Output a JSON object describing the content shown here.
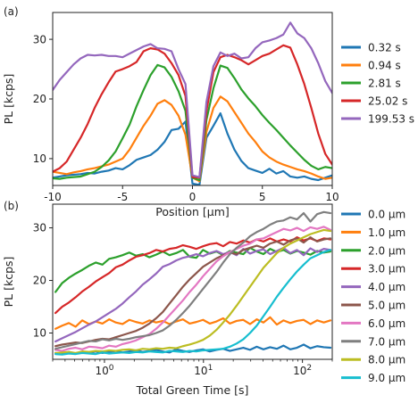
{
  "chart_data": [
    {
      "type": "line",
      "panel_label": "(a)",
      "xlabel": "Position [μm]",
      "ylabel": "PL [kcps]",
      "xlim": [
        -10,
        10
      ],
      "ylim": [
        5.5,
        34.5
      ],
      "xticks": [
        -10,
        -5,
        0,
        5,
        10
      ],
      "xtick_labels": [
        "-10",
        "-5",
        "0",
        "5",
        "10"
      ],
      "yticks": [
        10,
        20,
        30
      ],
      "ytick_labels": [
        "10",
        "20",
        "30"
      ],
      "grid": false,
      "legend_position": "outside-right",
      "x": [
        -10,
        -9.5,
        -9,
        -8.5,
        -8,
        -7.5,
        -7,
        -6.5,
        -6,
        -5.5,
        -5,
        -4.5,
        -4,
        -3.5,
        -3,
        -2.5,
        -2,
        -1.5,
        -1,
        -0.5,
        0,
        0.5,
        1,
        1.5,
        2,
        2.5,
        3,
        3.5,
        4,
        4.5,
        5,
        5.5,
        6,
        6.5,
        7,
        7.5,
        8,
        8.5,
        9,
        9.5,
        10
      ],
      "series": [
        {
          "name": "0.32 s",
          "color": "#1f77b4",
          "values": [
            6.8,
            7.0,
            7.2,
            7.3,
            7.4,
            7.6,
            7.5,
            7.8,
            8.0,
            8.4,
            8.2,
            8.9,
            9.8,
            10.2,
            10.6,
            11.5,
            12.8,
            14.8,
            15.0,
            16.2,
            5.8,
            5.6,
            13.5,
            15.5,
            17.6,
            14.2,
            11.5,
            9.6,
            8.4,
            8.0,
            7.6,
            8.3,
            7.5,
            7.9,
            7.0,
            6.8,
            7.0,
            6.6,
            6.4,
            6.8,
            7.2
          ]
        },
        {
          "name": "0.94 s",
          "color": "#ff7f0e",
          "values": [
            7.8,
            7.6,
            7.4,
            7.7,
            7.9,
            8.2,
            8.4,
            8.7,
            9.0,
            9.5,
            10.0,
            11.5,
            13.5,
            15.5,
            17.2,
            19.2,
            19.8,
            19.0,
            17.2,
            14.0,
            6.8,
            6.2,
            14.5,
            18.5,
            20.4,
            19.6,
            17.8,
            16.0,
            14.2,
            12.8,
            11.2,
            10.2,
            9.5,
            9.0,
            8.6,
            8.2,
            7.9,
            7.5,
            7.0,
            6.6,
            6.8
          ]
        },
        {
          "name": "2.81 s",
          "color": "#2ca02c",
          "values": [
            6.7,
            6.6,
            6.8,
            6.9,
            7.0,
            7.4,
            7.8,
            8.6,
            9.7,
            11.2,
            13.4,
            15.7,
            18.8,
            21.5,
            24.0,
            25.7,
            25.3,
            23.7,
            21.3,
            18.0,
            6.8,
            6.4,
            16.5,
            21.8,
            25.6,
            25.2,
            23.5,
            21.6,
            20.1,
            18.8,
            17.3,
            16.0,
            14.8,
            13.5,
            12.2,
            11.0,
            9.8,
            8.8,
            8.2,
            8.6,
            8.4
          ]
        },
        {
          "name": "25.02 s",
          "color": "#d62728",
          "values": [
            7.8,
            8.4,
            9.5,
            11.5,
            13.5,
            15.8,
            18.5,
            20.8,
            22.8,
            24.6,
            25.0,
            25.5,
            26.2,
            28.0,
            28.5,
            28.3,
            27.6,
            26.0,
            24.0,
            20.5,
            6.9,
            6.8,
            18.0,
            24.5,
            27.0,
            27.4,
            27.0,
            26.5,
            25.8,
            26.5,
            27.2,
            27.6,
            28.3,
            29.0,
            28.6,
            25.8,
            22.5,
            18.5,
            14.2,
            10.8,
            9.0
          ]
        },
        {
          "name": "199.53 s",
          "color": "#9467bd",
          "values": [
            21.5,
            23.2,
            24.5,
            25.8,
            26.8,
            27.4,
            27.3,
            27.4,
            27.2,
            27.2,
            27.0,
            27.6,
            28.2,
            28.8,
            29.2,
            28.5,
            28.4,
            28.0,
            25.0,
            22.5,
            7.2,
            6.9,
            19.5,
            25.5,
            27.8,
            27.2,
            27.6,
            26.8,
            27.0,
            28.5,
            29.5,
            29.8,
            30.2,
            30.8,
            32.8,
            31.0,
            30.2,
            28.5,
            26.0,
            23.0,
            21.0
          ]
        }
      ]
    },
    {
      "type": "line",
      "panel_label": "(b)",
      "xlabel": "Total Green Time [s]",
      "ylabel": "PL [kcps]",
      "xscale": "log",
      "xlim": [
        0.3,
        200
      ],
      "ylim": [
        5.0,
        34.5
      ],
      "xticks": [
        1,
        10,
        100
      ],
      "xtick_labels": [
        "10⁰",
        "10¹",
        "10²"
      ],
      "yticks": [
        10,
        20,
        30
      ],
      "ytick_labels": [
        "10",
        "20",
        "30"
      ],
      "grid": false,
      "legend_position": "outside-right",
      "x": [
        0.32,
        0.374,
        0.437,
        0.511,
        0.597,
        0.698,
        0.816,
        0.954,
        1.115,
        1.303,
        1.523,
        1.781,
        2.081,
        2.433,
        2.844,
        3.324,
        3.885,
        4.541,
        5.308,
        6.204,
        7.252,
        8.476,
        9.907,
        11.58,
        13.54,
        15.82,
        18.49,
        21.62,
        25.26,
        29.53,
        34.52,
        40.35,
        47.16,
        55.12,
        64.43,
        75.31,
        88.02,
        102.9,
        120.3,
        140.6,
        164.3,
        192.1
      ],
      "series": [
        {
          "name": "0.0 μm",
          "color": "#1f77b4",
          "values": [
            6.2,
            6.0,
            6.4,
            6.1,
            6.3,
            6.2,
            6.5,
            6.2,
            6.4,
            6.6,
            6.3,
            6.5,
            6.7,
            6.4,
            6.6,
            6.8,
            6.5,
            6.3,
            6.9,
            6.6,
            6.4,
            6.7,
            6.9,
            6.5,
            6.8,
            7.0,
            6.6,
            6.9,
            7.2,
            6.8,
            7.4,
            6.9,
            7.3,
            7.0,
            7.6,
            6.9,
            7.2,
            7.8,
            7.1,
            7.5,
            7.3,
            7.2
          ]
        },
        {
          "name": "1.0 μm",
          "color": "#ff7f0e",
          "values": [
            10.8,
            11.4,
            11.9,
            11.2,
            12.4,
            11.7,
            12.2,
            11.8,
            12.6,
            12.0,
            11.7,
            12.5,
            12.1,
            11.8,
            12.4,
            12.0,
            12.3,
            11.7,
            12.2,
            12.6,
            11.8,
            12.1,
            12.5,
            11.8,
            12.2,
            12.8,
            11.8,
            12.3,
            12.5,
            11.7,
            12.6,
            12.0,
            13.0,
            11.6,
            12.4,
            11.9,
            12.3,
            12.5,
            11.7,
            12.4,
            12.0,
            12.4
          ]
        },
        {
          "name": "2.0 μm",
          "color": "#2ca02c",
          "values": [
            17.8,
            19.5,
            20.5,
            21.3,
            22.0,
            22.8,
            23.4,
            23.0,
            24.1,
            24.4,
            24.8,
            25.3,
            24.7,
            25.0,
            24.4,
            24.9,
            25.5,
            24.8,
            25.2,
            25.8,
            24.5,
            24.3,
            25.8,
            25.1,
            25.5,
            24.8,
            25.6,
            25.3,
            25.0,
            26.2,
            25.5,
            25.0,
            26.0,
            25.4,
            25.8,
            25.1,
            25.6,
            25.3,
            24.9,
            25.6,
            25.3,
            25.5
          ]
        },
        {
          "name": "3.0 μm",
          "color": "#d62728",
          "values": [
            13.8,
            15.0,
            15.8,
            16.8,
            17.9,
            18.8,
            19.8,
            20.6,
            21.4,
            22.5,
            23.0,
            23.8,
            24.5,
            24.8,
            25.2,
            25.8,
            25.5,
            26.0,
            26.2,
            26.7,
            26.4,
            26.0,
            26.5,
            26.9,
            27.1,
            26.5,
            27.3,
            27.0,
            27.6,
            27.2,
            27.8,
            27.4,
            28.0,
            27.4,
            27.8,
            27.4,
            28.2,
            27.6,
            28.0,
            27.5,
            28.0,
            27.8
          ]
        },
        {
          "name": "4.0 μm",
          "color": "#9467bd",
          "values": [
            8.4,
            9.0,
            9.6,
            10.2,
            10.9,
            11.6,
            12.2,
            13.0,
            13.8,
            14.6,
            15.6,
            16.8,
            17.9,
            19.2,
            20.2,
            21.3,
            22.6,
            23.1,
            23.8,
            24.3,
            24.6,
            25.0,
            24.6,
            25.2,
            25.6,
            25.0,
            25.4,
            24.8,
            26.0,
            25.1,
            25.6,
            25.9,
            25.0,
            25.6,
            26.2,
            25.2,
            25.8,
            24.8,
            26.1,
            25.4,
            26.0,
            25.8
          ]
        },
        {
          "name": "5.0 μm",
          "color": "#8c564b",
          "values": [
            7.5,
            7.8,
            8.0,
            8.2,
            8.1,
            8.4,
            8.7,
            8.9,
            8.8,
            9.2,
            9.6,
            10.0,
            10.4,
            11.0,
            11.8,
            12.8,
            14.0,
            15.6,
            17.2,
            18.8,
            20.2,
            21.4,
            22.6,
            23.4,
            24.2,
            24.8,
            25.3,
            25.0,
            25.8,
            26.2,
            26.6,
            26.2,
            27.0,
            27.4,
            26.8,
            27.6,
            28.0,
            27.2,
            28.2,
            27.4,
            27.8,
            28.0
          ]
        },
        {
          "name": "6.0 μm",
          "color": "#e377c2",
          "values": [
            6.8,
            6.6,
            7.0,
            7.2,
            6.9,
            7.4,
            7.3,
            7.1,
            7.6,
            7.4,
            7.9,
            8.2,
            8.6,
            9.2,
            9.8,
            10.8,
            12.0,
            13.4,
            14.8,
            16.2,
            17.8,
            19.2,
            20.8,
            22.2,
            23.6,
            24.6,
            25.4,
            26.0,
            26.6,
            27.0,
            27.8,
            28.0,
            28.6,
            29.2,
            29.8,
            29.5,
            30.0,
            29.4,
            30.1,
            29.8,
            30.2,
            29.6
          ]
        },
        {
          "name": "7.0 μm",
          "color": "#7f7f7f",
          "values": [
            7.0,
            7.3,
            7.6,
            7.9,
            8.2,
            8.5,
            8.4,
            8.8,
            8.6,
            8.9,
            8.7,
            8.9,
            9.2,
            9.4,
            9.6,
            10.0,
            10.5,
            11.4,
            12.5,
            13.8,
            15.2,
            16.8,
            18.4,
            20.0,
            21.6,
            23.4,
            25.0,
            26.2,
            27.2,
            28.4,
            29.2,
            29.8,
            30.6,
            31.2,
            31.4,
            32.0,
            31.6,
            32.8,
            31.2,
            32.6,
            33.0,
            32.8
          ]
        },
        {
          "name": "8.0 μm",
          "color": "#bcbd22",
          "values": [
            6.2,
            6.3,
            6.4,
            6.2,
            6.5,
            6.4,
            6.6,
            6.5,
            6.7,
            6.6,
            6.8,
            6.9,
            6.7,
            7.0,
            6.9,
            7.1,
            7.0,
            7.2,
            7.1,
            7.5,
            7.8,
            8.2,
            8.7,
            9.5,
            10.6,
            12.0,
            13.5,
            15.2,
            17.0,
            18.8,
            20.6,
            22.4,
            23.8,
            25.2,
            26.2,
            27.0,
            27.6,
            28.2,
            28.8,
            29.2,
            29.6,
            29.4
          ]
        },
        {
          "name": "9.0 μm",
          "color": "#17becf",
          "values": [
            6.0,
            5.9,
            6.1,
            6.0,
            6.2,
            6.1,
            6.0,
            6.3,
            6.1,
            6.2,
            6.3,
            6.2,
            6.4,
            6.3,
            6.5,
            6.4,
            6.3,
            6.6,
            6.5,
            6.4,
            6.6,
            6.5,
            6.7,
            6.8,
            6.9,
            7.0,
            7.4,
            8.0,
            8.8,
            10.0,
            11.4,
            13.2,
            15.0,
            16.9,
            18.6,
            20.2,
            21.7,
            23.0,
            24.2,
            24.8,
            25.4,
            25.8
          ]
        }
      ]
    }
  ]
}
